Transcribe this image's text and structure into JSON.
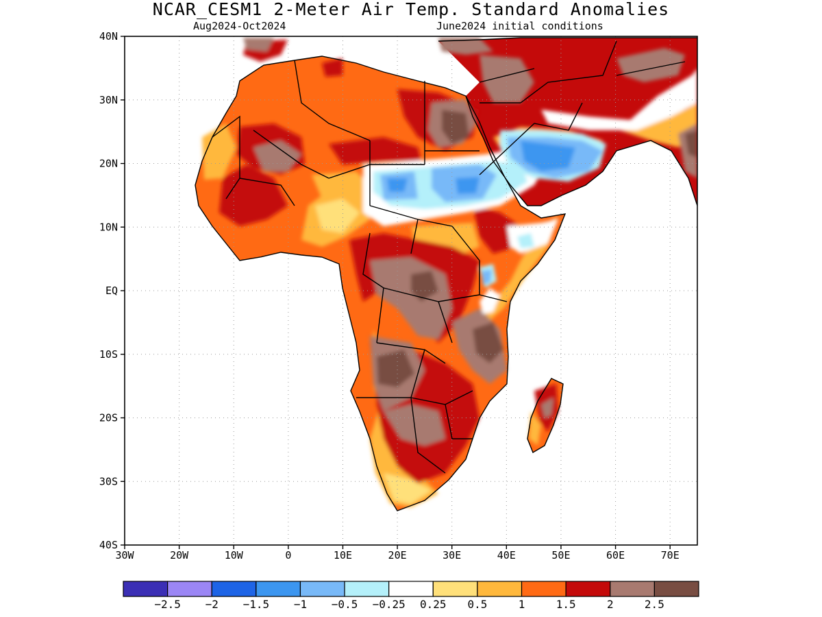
{
  "title": "NCAR_CESM1 2-Meter Air Temp. Standard Anomalies",
  "subtitle_left": "Aug2024-Oct2024",
  "subtitle_right": "June2024 initial conditions",
  "map": {
    "region": "Africa",
    "lon_range": [
      -30,
      75
    ],
    "lat_range": [
      -40,
      40
    ],
    "lat_ticks": [
      {
        "value": 40,
        "label": "40N"
      },
      {
        "value": 30,
        "label": "30N"
      },
      {
        "value": 20,
        "label": "20N"
      },
      {
        "value": 10,
        "label": "10N"
      },
      {
        "value": 0,
        "label": "EQ"
      },
      {
        "value": -10,
        "label": "10S"
      },
      {
        "value": -20,
        "label": "20S"
      },
      {
        "value": -30,
        "label": "30S"
      },
      {
        "value": -40,
        "label": "40S"
      }
    ],
    "lon_ticks": [
      {
        "value": -30,
        "label": "30W"
      },
      {
        "value": -20,
        "label": "20W"
      },
      {
        "value": -10,
        "label": "10W"
      },
      {
        "value": 0,
        "label": "0"
      },
      {
        "value": 10,
        "label": "10E"
      },
      {
        "value": 20,
        "label": "20E"
      },
      {
        "value": 30,
        "label": "30E"
      },
      {
        "value": 40,
        "label": "40E"
      },
      {
        "value": 50,
        "label": "50E"
      },
      {
        "value": 60,
        "label": "60E"
      },
      {
        "value": 70,
        "label": "70E"
      }
    ],
    "grid": "dotted"
  },
  "colorbar": {
    "colors": [
      "#3b2fb5",
      "#9b86f5",
      "#1e64e6",
      "#3c96f0",
      "#78b9f8",
      "#b4f0fa",
      "#ffffff",
      "#ffe07a",
      "#ffb83c",
      "#ff6a14",
      "#c40a0a",
      "#a87a70",
      "#784d42"
    ],
    "labels": [
      "-2.5",
      "-2",
      "-1.5",
      "-1",
      "-0.5",
      "-0.25",
      "0.25",
      "0.5",
      "1",
      "1.5",
      "2",
      "2.5"
    ]
  }
}
